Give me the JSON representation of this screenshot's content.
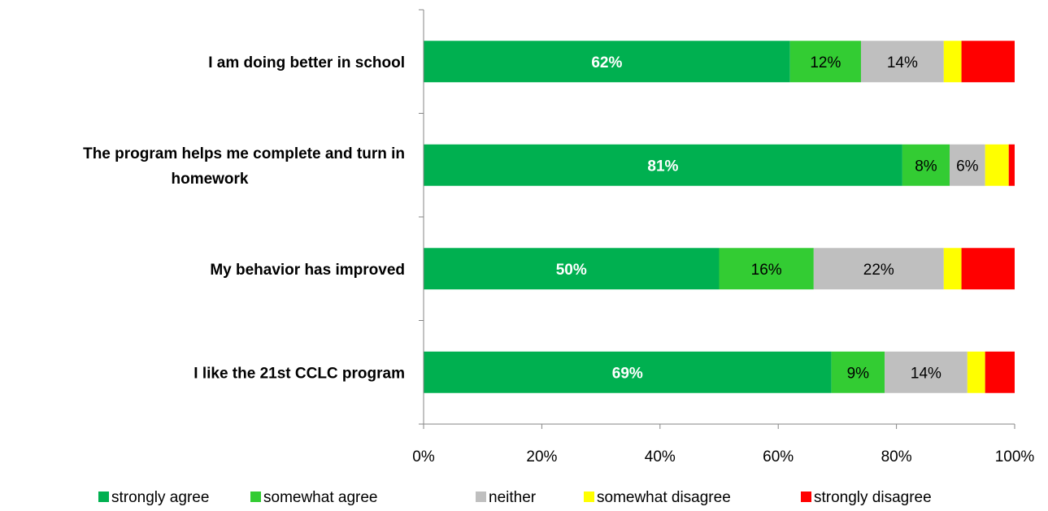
{
  "chart_data": {
    "type": "bar",
    "orientation": "horizontal",
    "stacking": "percent",
    "categories": [
      [
        "I am doing better in school"
      ],
      [
        "The program helps me complete and turn in",
        "homework"
      ],
      [
        "My behavior has improved"
      ],
      [
        "I like the 21st CCLC program"
      ]
    ],
    "series": [
      {
        "name": "strongly agree",
        "color": "#00b050",
        "values": [
          62,
          81,
          50,
          69
        ],
        "labels": [
          "62%",
          "81%",
          "50%",
          "69%"
        ]
      },
      {
        "name": "somewhat agree",
        "color": "#33cc33",
        "values": [
          12,
          8,
          16,
          9
        ],
        "labels": [
          "12%",
          "8%",
          "16%",
          "9%"
        ]
      },
      {
        "name": "neither",
        "color": "#bfbfbf",
        "values": [
          14,
          6,
          22,
          14
        ],
        "labels": [
          "14%",
          "6%",
          "22%",
          "14%"
        ]
      },
      {
        "name": "somewhat disagree",
        "color": "#ffff00",
        "values": [
          3,
          4,
          3,
          3
        ],
        "labels": [
          "",
          "",
          "",
          ""
        ]
      },
      {
        "name": "strongly disagree",
        "color": "#ff0000",
        "values": [
          9,
          1,
          9,
          5
        ],
        "labels": [
          "",
          "",
          "",
          ""
        ]
      }
    ],
    "xlim": [
      0,
      100
    ],
    "xticks": [
      "0%",
      "20%",
      "40%",
      "60%",
      "80%",
      "100%"
    ],
    "grid": false,
    "legend_position": "bottom",
    "title": "",
    "xlabel": "",
    "ylabel": ""
  }
}
